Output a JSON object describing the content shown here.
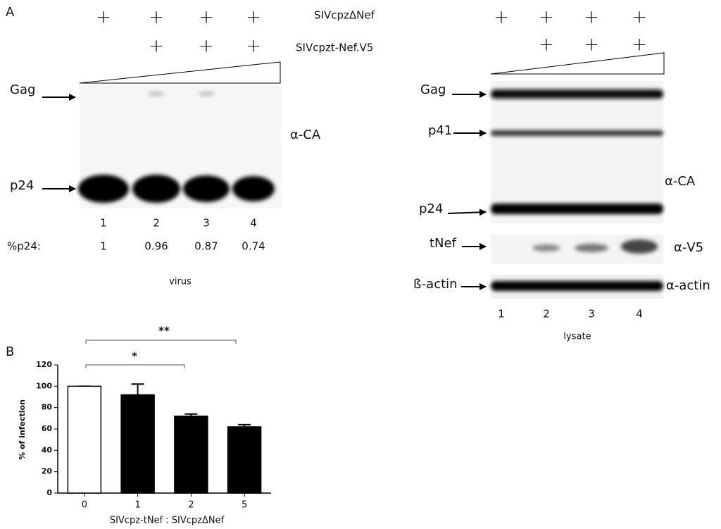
{
  "panel_a": {
    "label": "A",
    "condition_labels": [
      "SIVcpzΔNef",
      "SIVcpzt-Nef.V5"
    ],
    "left_blot": {
      "plus_row_1": [
        "+",
        "+",
        "+",
        "+"
      ],
      "plus_row_2": [
        "+",
        "+",
        "+"
      ],
      "markers": [
        "Gag",
        "p24"
      ],
      "antibody": "α-CA",
      "lanes": [
        "1",
        "2",
        "3",
        "4"
      ],
      "ratio_label": "%p24:",
      "ratios": [
        1,
        0.96,
        0.87,
        0.74
      ],
      "caption": "virus"
    },
    "right_blot": {
      "plus_row_1": [
        "+",
        "+",
        "+",
        "+"
      ],
      "plus_row_2": [
        "+",
        "+",
        "+"
      ],
      "markers": [
        "Gag",
        "p41",
        "p24",
        "tNef",
        "ß-actin"
      ],
      "antibodies": [
        "α-CA",
        "α-V5",
        "α-actin"
      ],
      "lanes": [
        "1",
        "2",
        "3",
        "4"
      ],
      "caption": "lysate"
    }
  },
  "chart_data": {
    "type": "bar",
    "panel_label": "B",
    "ylabel": "% of infection",
    "xlabel": "SIVcpz-tNef : SIVcpzΔNef",
    "categories": [
      "0",
      "1",
      "2",
      "5"
    ],
    "values": [
      100,
      92,
      72,
      62
    ],
    "errors": [
      0,
      10,
      2,
      2
    ],
    "colors": [
      "#ffffff",
      "#000000",
      "#000000",
      "#000000"
    ],
    "edgecolor": "#000000",
    "ylim": [
      0,
      120
    ],
    "yticks": [
      0,
      20,
      40,
      60,
      80,
      100,
      120
    ],
    "significance": [
      "*",
      "**"
    ]
  }
}
